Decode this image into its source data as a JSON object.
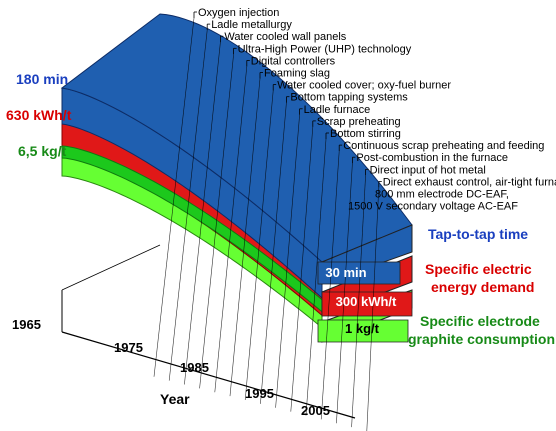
{
  "colors": {
    "blue": "#1f5fb0",
    "red": "#e01818",
    "green": "#1cc81c",
    "lightgreen": "#66ff33",
    "axis": "#000000",
    "text_blue": "#1a3fbf",
    "text_red": "#d90000",
    "text_green": "#178a17"
  },
  "start_labels": {
    "time": "180 min",
    "energy": "630 kWh/t",
    "graphite": "6,5 kg/t"
  },
  "end_labels": {
    "time": "30 min",
    "energy": "300 kWh/t",
    "graphite": "1 kg/t"
  },
  "band_titles": {
    "time": "Tap-to-tap time",
    "energy_line1": "Specific electric",
    "energy_line2": "energy demand",
    "graphite_line1": "Specific electrode",
    "graphite_line2": "graphite consumption"
  },
  "axis": {
    "title": "Year",
    "ticks": [
      "1965",
      "1975",
      "1985",
      "1995",
      "2005"
    ]
  },
  "innovations": [
    "Oxygen injection",
    "Ladle metallurgy",
    "Water cooled wall panels",
    "Ultra-High Power (UHP) technology",
    "Digital controllers",
    "Foaming slag",
    "Water cooled cover; oxy-fuel burner",
    "Bottom tapping systems",
    "Ladle furnace",
    "Scrap preheating",
    "Bottom stirring",
    "Continuous scrap preheating and feeding",
    "Post-combustion in the furnace",
    "Direct input of hot metal",
    "Direct exhaust control, air-tight furnace",
    "800 mm electrode DC-EAF,",
    "1500 V secondary voltage AC-EAF"
  ]
}
